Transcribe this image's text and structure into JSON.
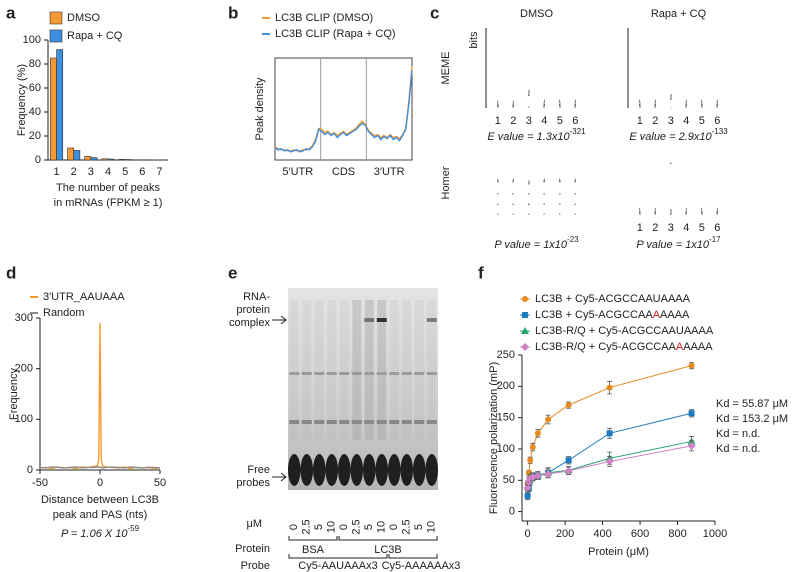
{
  "chart_data": [
    {
      "panel": "a",
      "type": "bar",
      "categories": [
        "1",
        "2",
        "3",
        "4",
        "5",
        "6",
        "7"
      ],
      "series": [
        {
          "name": "DMSO",
          "color": "#f39a34",
          "values": [
            85,
            10,
            3,
            1,
            0.5,
            0.2,
            0.1
          ]
        },
        {
          "name": "Rapa + CQ",
          "color": "#3d8fe0",
          "values": [
            92,
            8,
            2,
            0.8,
            0.4,
            0.2,
            0.1
          ]
        }
      ],
      "ylabel": "Frequency (%)",
      "xlabel": [
        "The number of peaks",
        "in mRNAs (FPKM ≥ 1)"
      ],
      "ylim": [
        0,
        100
      ],
      "yticks": [
        0,
        20,
        40,
        60,
        80,
        100
      ]
    },
    {
      "panel": "b",
      "type": "line",
      "regions": [
        "5′UTR",
        "CDS",
        "3′UTR"
      ],
      "series": [
        {
          "name": "LC3B CLIP (DMSO)",
          "color": "#f39a34",
          "values": [
            0.13,
            0.11,
            0.1,
            0.1,
            0.09,
            0.09,
            0.1,
            0.09,
            0.09,
            0.1,
            0.1,
            0.11,
            0.14,
            0.2,
            0.31,
            0.3,
            0.27,
            0.28,
            0.25,
            0.27,
            0.24,
            0.26,
            0.28,
            0.25,
            0.27,
            0.29,
            0.31,
            0.35,
            0.38,
            0.35,
            0.29,
            0.26,
            0.24,
            0.25,
            0.22,
            0.24,
            0.22,
            0.25,
            0.22,
            0.23,
            0.21,
            0.25,
            0.31,
            0.58,
            0.92
          ]
        },
        {
          "name": "LC3B CLIP (Rapa + CQ)",
          "color": "#3d8fe0",
          "values": [
            0.12,
            0.1,
            0.11,
            0.09,
            0.1,
            0.08,
            0.09,
            0.1,
            0.08,
            0.09,
            0.11,
            0.1,
            0.13,
            0.18,
            0.3,
            0.28,
            0.25,
            0.27,
            0.24,
            0.26,
            0.22,
            0.25,
            0.27,
            0.24,
            0.26,
            0.28,
            0.3,
            0.33,
            0.36,
            0.34,
            0.28,
            0.25,
            0.22,
            0.24,
            0.2,
            0.23,
            0.21,
            0.24,
            0.2,
            0.22,
            0.19,
            0.24,
            0.3,
            0.55,
            0.88
          ]
        }
      ],
      "ylabel": "Peak density",
      "ylim": [
        0,
        1
      ],
      "grid": true
    },
    {
      "panel": "d",
      "type": "line",
      "x": [
        -50,
        -45,
        -40,
        -35,
        -30,
        -25,
        -20,
        -15,
        -10,
        -5,
        -2,
        -1,
        0,
        1,
        2,
        5,
        10,
        15,
        20,
        25,
        30,
        35,
        40,
        45,
        50
      ],
      "series": [
        {
          "name": "3′UTR_AAUAAA",
          "color": "#f39a34",
          "values": [
            4,
            5,
            3,
            6,
            4,
            5,
            3,
            6,
            5,
            7,
            9,
            25,
            290,
            22,
            8,
            6,
            5,
            4,
            6,
            3,
            5,
            4,
            5,
            3,
            4
          ]
        },
        {
          "name": "Random",
          "color": "#8a8a8a",
          "values": [
            5,
            4,
            6,
            5,
            4,
            5,
            6,
            4,
            5,
            5,
            6,
            5,
            6,
            5,
            4,
            5,
            6,
            5,
            4,
            6,
            5,
            4,
            5,
            5,
            4
          ]
        }
      ],
      "ylabel": "Frequency",
      "xlabel": [
        "Distance between LC3B",
        "peak and PAS (nts)"
      ],
      "annotation": {
        "text": "P = 1.06 X 10",
        "sup": "-59"
      },
      "xlim": [
        -50,
        50
      ],
      "xticks": [
        -50,
        0,
        50
      ],
      "ylim": [
        0,
        300
      ],
      "yticks": [
        0,
        100,
        200,
        300
      ]
    },
    {
      "panel": "f",
      "type": "scatter",
      "x": [
        0,
        6.8,
        13.7,
        27.3,
        54.7,
        109.4,
        218.8,
        437.5,
        875
      ],
      "series": [
        {
          "name": "LC3B + Cy5-ACGCCAAUAAAA",
          "color": "#e58a1f",
          "marker": "circle",
          "values": [
            45,
            62,
            82,
            103,
            125,
            147,
            170,
            198,
            233
          ],
          "errors": [
            4,
            4,
            5,
            6,
            6,
            7,
            5,
            10,
            5
          ],
          "annotation": "Kd = 55.87 μM"
        },
        {
          "name": [
            "LC3B + Cy5-ACGCCAA",
            "A",
            "AAAA"
          ],
          "color": "#1f7bbf",
          "marker": "square",
          "values": [
            25,
            38,
            50,
            55,
            57,
            62,
            82,
            125,
            157
          ],
          "errors": [
            6,
            6,
            7,
            6,
            6,
            8,
            6,
            8,
            6
          ],
          "annotation": "Kd = 153.2 μM"
        },
        {
          "name": "LC3B-R/Q + Cy5-ACGCCAAUAAAA",
          "color": "#2aa36b",
          "marker": "triangle",
          "values": [
            40,
            50,
            54,
            56,
            58,
            62,
            66,
            85,
            112
          ],
          "errors": [
            6,
            5,
            5,
            6,
            6,
            7,
            6,
            10,
            8
          ],
          "annotation": "Kd = n.d."
        },
        {
          "name": [
            "LC3B-R/Q + Cy5-ACGCCAA",
            "A",
            "AAAA"
          ],
          "color": "#cf83c4",
          "marker": "diamond",
          "values": [
            38,
            47,
            52,
            55,
            57,
            60,
            65,
            80,
            105
          ],
          "errors": [
            5,
            5,
            5,
            5,
            6,
            6,
            6,
            8,
            8
          ],
          "annotation": "Kd = n.d."
        }
      ],
      "xlabel": "Protein (μM)",
      "ylabel": "Fluorescence polarization (mP)",
      "xlim": [
        -30,
        1000
      ],
      "xticks": [
        0,
        200,
        400,
        600,
        800,
        1000
      ],
      "ylim": [
        -15,
        250
      ],
      "yticks": [
        0,
        50,
        100,
        150,
        200,
        250
      ]
    }
  ],
  "motifs": {
    "panel": "c",
    "conditions": [
      "DMSO",
      "Rapa + CQ"
    ],
    "methods": [
      "MEME",
      "Homer"
    ],
    "bits_label": "bits",
    "logos": [
      [
        {
          "columns": [
            [
              [
                "A",
                1.8
              ]
            ],
            [
              [
                "A",
                1.8
              ]
            ],
            [
              [
                "U",
                1.3
              ],
              [
                "C",
                0.3
              ]
            ],
            [
              [
                "A",
                1.9
              ]
            ],
            [
              [
                "A",
                1.9
              ]
            ],
            [
              [
                "A",
                1.9
              ]
            ]
          ],
          "positions": [
            "1",
            "2",
            "3",
            "4",
            "5",
            "6"
          ],
          "stat": {
            "text": "E value = 1.3x10",
            "sup": "-321"
          }
        },
        {
          "columns": [
            [
              [
                "A",
                1.9
              ]
            ],
            [
              [
                "A",
                1.9
              ]
            ],
            [
              [
                "U",
                1.4
              ],
              [
                "C",
                0.2
              ]
            ],
            [
              [
                "A",
                1.9
              ]
            ],
            [
              [
                "A",
                1.9
              ]
            ],
            [
              [
                "A",
                1.9
              ]
            ]
          ],
          "positions": [
            "1",
            "2",
            "3",
            "4",
            "5",
            "6"
          ],
          "stat": {
            "text": "E value = 2.9x10",
            "sup": "-133"
          }
        }
      ],
      [
        {
          "columns": [
            [
              [
                "A",
                1.0
              ],
              [
                "U",
                0.35
              ],
              [
                "G",
                0.3
              ],
              [
                "C",
                0.3
              ]
            ],
            [
              [
                "A",
                1.0
              ],
              [
                "U",
                0.35
              ],
              [
                "G",
                0.3
              ],
              [
                "C",
                0.3
              ]
            ],
            [
              [
                "U",
                1.0
              ],
              [
                "G",
                0.3
              ],
              [
                "A",
                0.3
              ],
              [
                "C",
                0.3
              ]
            ],
            [
              [
                "A",
                1.0
              ],
              [
                "U",
                0.35
              ],
              [
                "G",
                0.3
              ],
              [
                "C",
                0.3
              ]
            ],
            [
              [
                "A",
                1.0
              ],
              [
                "U",
                0.35
              ],
              [
                "G",
                0.3
              ],
              [
                "C",
                0.3
              ]
            ],
            [
              [
                "A",
                1.0
              ],
              [
                "U",
                0.35
              ],
              [
                "G",
                0.3
              ],
              [
                "C",
                0.3
              ]
            ]
          ],
          "stat": {
            "text": "P value = 1x10",
            "sup": "-23"
          }
        },
        {
          "columns": [
            [
              [
                "A",
                1.9
              ]
            ],
            [
              [
                "A",
                1.9
              ]
            ],
            [
              [
                "A",
                0.4
              ],
              [
                "U",
                1.5
              ]
            ],
            [
              [
                "A",
                1.9
              ]
            ],
            [
              [
                "A",
                1.9
              ]
            ],
            [
              [
                "A",
                1.9
              ]
            ]
          ],
          "positions": [
            "1",
            "2",
            "3",
            "4",
            "5",
            "6"
          ],
          "stat": {
            "text": "P value = 1x10",
            "sup": "-17"
          }
        }
      ]
    ]
  },
  "gel": {
    "panel": "e",
    "complex_label": [
      "RNA-",
      "protein",
      "complex"
    ],
    "free_label": [
      "Free",
      "probes"
    ],
    "unit": "μM",
    "doses": [
      "0",
      "2.5",
      "5",
      "10",
      "0",
      "2.5",
      "5",
      "10",
      "0",
      "2.5",
      "5",
      "10"
    ],
    "protein_label": "Protein",
    "proteins": [
      "BSA",
      "LC3B"
    ],
    "probe_label": "Probe",
    "probes": [
      "Cy5-AAUAAAx3",
      "Cy5-AAAAAAx3"
    ]
  }
}
